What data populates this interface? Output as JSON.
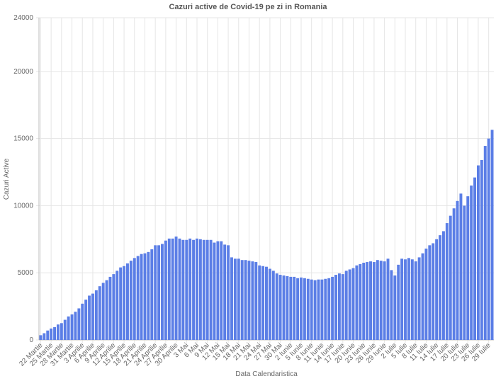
{
  "chart_data": {
    "type": "bar",
    "title": "Cazuri active de Covid-19 pe zi in Romania",
    "x_label": "Data Calendaristica",
    "y_label": "Cazuri Active",
    "color": "#5b7ee6",
    "grid": true,
    "ylim": [
      0,
      24000
    ],
    "yticks": [
      0,
      5000,
      10000,
      15000,
      20000,
      24000
    ],
    "categories": [
      "22 Martie",
      null,
      null,
      "25 Martie",
      null,
      null,
      "28 Martie",
      null,
      null,
      "31 Martie",
      null,
      null,
      "3 Aprilie",
      null,
      null,
      "6 Aprilie",
      null,
      null,
      "9 Aprilie",
      null,
      null,
      "12 Aprilie",
      null,
      null,
      "15 Aprilie",
      null,
      null,
      "18 Aprilie",
      null,
      null,
      "21 Aprilie",
      null,
      null,
      "24 Aprilie",
      null,
      null,
      "27 Aprilie",
      null,
      null,
      "30 Aprilie",
      null,
      null,
      "3 Mai",
      null,
      null,
      "6 Mai",
      null,
      null,
      "9 Mai",
      null,
      null,
      "12 Mai",
      null,
      null,
      "15 Mai",
      null,
      null,
      "18 Mai",
      null,
      null,
      "21 Mai",
      null,
      null,
      "24 Mai",
      null,
      null,
      "27 Mai",
      null,
      null,
      "30 Mai",
      null,
      null,
      "2 Iunie",
      null,
      null,
      "5 Iunie",
      null,
      null,
      "8 Iunie",
      null,
      null,
      "11 Iunie",
      null,
      null,
      "14 Iunie",
      null,
      null,
      "17 Iunie",
      null,
      null,
      "20 Iunie",
      null,
      null,
      "23 Iunie",
      null,
      null,
      "26 Iunie",
      null,
      null,
      "29 Iunie",
      null,
      null,
      "2 Iulie",
      null,
      null,
      "5 Iulie",
      null,
      null,
      "8 Iulie",
      null,
      null,
      "11 Iulie",
      null,
      null,
      "14 Iulie",
      null,
      null,
      "17 Iulie",
      null,
      null,
      "20 Iulie",
      null,
      null,
      "23 Iulie",
      null,
      null,
      "26 Iulie",
      null,
      null,
      "29 Iulie",
      null
    ],
    "values": [
      350,
      500,
      700,
      850,
      950,
      1150,
      1250,
      1500,
      1750,
      1900,
      2100,
      2350,
      2700,
      3000,
      3300,
      3450,
      3700,
      4000,
      4250,
      4450,
      4700,
      4900,
      5150,
      5400,
      5500,
      5700,
      5900,
      6100,
      6250,
      6400,
      6450,
      6550,
      6750,
      7050,
      7050,
      7150,
      7400,
      7550,
      7550,
      7700,
      7550,
      7450,
      7450,
      7550,
      7450,
      7550,
      7500,
      7450,
      7450,
      7450,
      7250,
      7350,
      7350,
      7100,
      7050,
      6150,
      6050,
      6050,
      5950,
      5950,
      5900,
      5850,
      5800,
      5550,
      5500,
      5450,
      5300,
      5150,
      4950,
      4850,
      4800,
      4750,
      4700,
      4700,
      4600,
      4650,
      4600,
      4550,
      4500,
      4450,
      4500,
      4500,
      4550,
      4600,
      4700,
      4850,
      4950,
      4900,
      5150,
      5250,
      5350,
      5550,
      5650,
      5750,
      5800,
      5850,
      5800,
      5950,
      5900,
      5850,
      6050,
      5200,
      4800,
      5600,
      6050,
      6000,
      6100,
      6000,
      5850,
      6150,
      6450,
      6800,
      7050,
      7200,
      7500,
      7800,
      8100,
      8700,
      9250,
      9800,
      10350,
      10900,
      10000,
      10700,
      11500,
      12100,
      13000,
      13400,
      14450,
      15000,
      15650
    ]
  }
}
